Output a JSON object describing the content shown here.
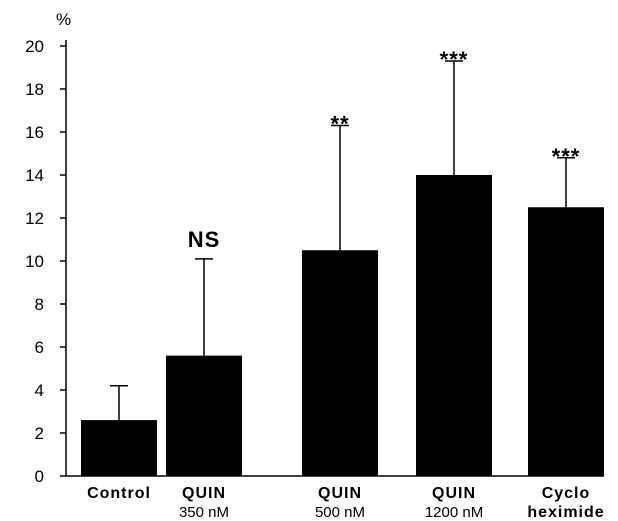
{
  "chart_data": {
    "type": "bar",
    "ylabel": "%",
    "ylim": [
      0,
      20
    ],
    "yticks": [
      0,
      2,
      4,
      6,
      8,
      10,
      12,
      14,
      16,
      18,
      20
    ],
    "grid": false,
    "categories": [
      {
        "line1": "Control",
        "line2": "",
        "line2_bold": false
      },
      {
        "line1": "QUIN",
        "line2": "350 nM",
        "line2_bold": false
      },
      {
        "line1": "QUIN",
        "line2": "500 nM",
        "line2_bold": false
      },
      {
        "line1": "QUIN",
        "line2": "1200 nM",
        "line2_bold": false
      },
      {
        "line1": "Cyclo",
        "line2": "heximide",
        "line2_bold": true
      }
    ],
    "values": [
      2.6,
      5.6,
      10.5,
      14.0,
      12.5
    ],
    "error_upper": [
      1.6,
      4.5,
      5.8,
      5.3,
      2.3
    ],
    "significance": [
      "",
      "NS",
      "**",
      "***",
      "***"
    ],
    "bar_color": "#000000"
  }
}
